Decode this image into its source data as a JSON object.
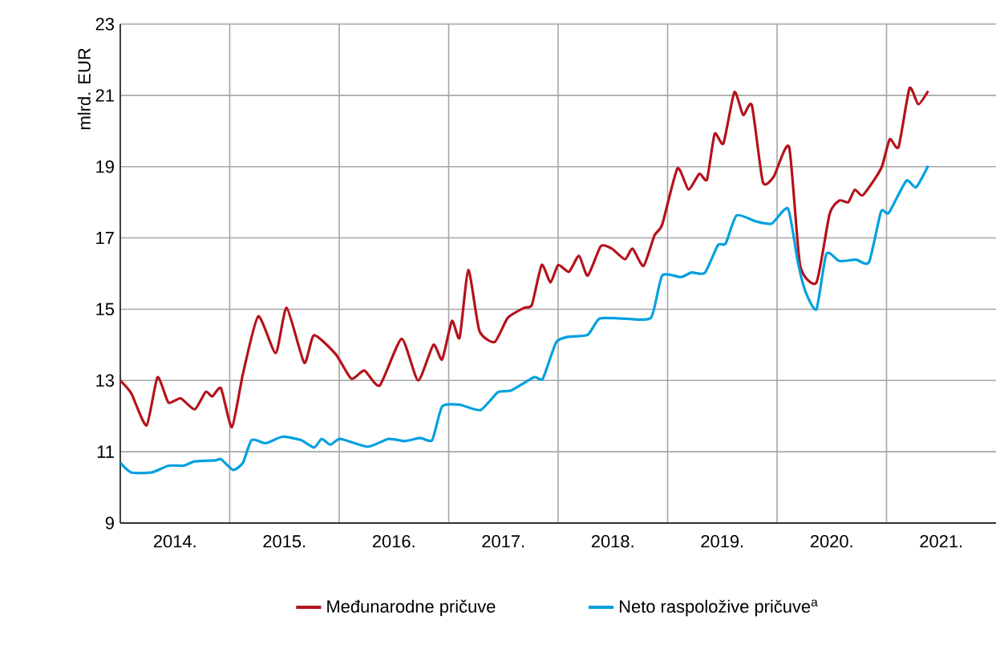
{
  "chart_data": {
    "type": "line",
    "ylabel": "mlrd. EUR",
    "xlim": [
      2014,
      2022
    ],
    "ylim": [
      9,
      23
    ],
    "yticks": [
      9,
      11,
      13,
      15,
      17,
      19,
      21,
      23
    ],
    "xticks": [
      {
        "value": 2014,
        "label": null
      },
      {
        "value": 2015,
        "label": null
      },
      {
        "value": 2016,
        "label": null
      },
      {
        "value": 2017,
        "label": null
      },
      {
        "value": 2018,
        "label": null
      },
      {
        "value": 2019,
        "label": null
      },
      {
        "value": 2020,
        "label": null
      },
      {
        "value": 2021,
        "label": null
      },
      {
        "value": 2014.5,
        "label": "2014."
      },
      {
        "value": 2015.5,
        "label": "2015."
      },
      {
        "value": 2016.5,
        "label": "2016."
      },
      {
        "value": 2017.5,
        "label": "2017."
      },
      {
        "value": 2018.5,
        "label": "2018."
      },
      {
        "value": 2019.5,
        "label": "2019."
      },
      {
        "value": 2020.5,
        "label": "2020."
      },
      {
        "value": 2021.5,
        "label": "2021."
      }
    ],
    "grid": true,
    "legend": "bottom",
    "line_style": "solid",
    "marker": "none",
    "series": [
      {
        "name": "Međunarodne pričuve",
        "color": "#b5121b",
        "x": [
          2014.0,
          2014.1,
          2014.24,
          2014.34,
          2014.44,
          2014.55,
          2014.68,
          2014.78,
          2014.84,
          2014.92,
          2015.02,
          2015.12,
          2015.26,
          2015.42,
          2015.52,
          2015.68,
          2015.77,
          2015.97,
          2016.11,
          2016.23,
          2016.37,
          2016.57,
          2016.72,
          2016.86,
          2016.94,
          2017.03,
          2017.1,
          2017.18,
          2017.28,
          2017.42,
          2017.54,
          2017.69,
          2017.76,
          2017.85,
          2017.93,
          2018.0,
          2018.1,
          2018.19,
          2018.27,
          2018.39,
          2018.49,
          2018.61,
          2018.68,
          2018.78,
          2018.88,
          2018.95,
          2019.09,
          2019.19,
          2019.29,
          2019.36,
          2019.43,
          2019.51,
          2019.61,
          2019.69,
          2019.77,
          2019.87,
          2019.97,
          2020.11,
          2020.21,
          2020.36,
          2020.48,
          2020.57,
          2020.65,
          2020.71,
          2020.78,
          2020.89,
          2020.96,
          2021.03,
          2021.11,
          2021.21,
          2021.29,
          2021.38
        ],
        "values": [
          13.0,
          12.64,
          11.74,
          13.09,
          12.38,
          12.5,
          12.19,
          12.68,
          12.55,
          12.78,
          11.69,
          13.18,
          14.8,
          13.77,
          15.04,
          13.5,
          14.27,
          13.73,
          13.05,
          13.28,
          12.86,
          14.17,
          13.0,
          14.0,
          13.59,
          14.67,
          14.2,
          16.1,
          14.4,
          14.08,
          14.76,
          15.04,
          15.12,
          16.24,
          15.75,
          16.24,
          16.05,
          16.5,
          15.94,
          16.77,
          16.7,
          16.4,
          16.7,
          16.21,
          17.07,
          17.37,
          18.95,
          18.36,
          18.8,
          18.64,
          19.92,
          19.65,
          21.09,
          20.45,
          20.72,
          18.57,
          18.72,
          19.55,
          16.24,
          15.75,
          17.67,
          18.05,
          18.0,
          18.35,
          18.19,
          18.64,
          19.02,
          19.77,
          19.55,
          21.2,
          20.75,
          21.12
        ]
      },
      {
        "name": "Neto raspoložive pričuve$^{a}$",
        "color": "#00a0e0",
        "x": [
          2014.0,
          2014.1,
          2014.29,
          2014.44,
          2014.58,
          2014.68,
          2014.87,
          2014.92,
          2015.03,
          2015.12,
          2015.2,
          2015.33,
          2015.48,
          2015.65,
          2015.77,
          2015.84,
          2015.92,
          2016.01,
          2016.26,
          2016.45,
          2016.6,
          2016.74,
          2016.85,
          2016.94,
          2017.1,
          2017.29,
          2017.45,
          2017.57,
          2017.78,
          2017.86,
          2017.98,
          2018.08,
          2018.27,
          2018.38,
          2018.63,
          2018.85,
          2018.95,
          2019.12,
          2019.22,
          2019.34,
          2019.46,
          2019.53,
          2019.63,
          2019.8,
          2019.95,
          2020.1,
          2020.19,
          2020.26,
          2020.36,
          2020.45,
          2020.57,
          2020.72,
          2020.84,
          2020.95,
          2021.02,
          2021.18,
          2021.27,
          2021.38
        ],
        "values": [
          10.69,
          10.42,
          10.42,
          10.61,
          10.61,
          10.73,
          10.76,
          10.79,
          10.49,
          10.69,
          11.33,
          11.24,
          11.42,
          11.33,
          11.12,
          11.36,
          11.2,
          11.36,
          11.14,
          11.36,
          11.3,
          11.39,
          11.33,
          12.27,
          12.32,
          12.17,
          12.67,
          12.72,
          13.09,
          13.05,
          14.06,
          14.22,
          14.28,
          14.74,
          14.73,
          14.77,
          15.94,
          15.9,
          16.03,
          16.02,
          16.8,
          16.84,
          17.63,
          17.47,
          17.4,
          17.82,
          16.32,
          15.49,
          15.0,
          16.55,
          16.35,
          16.39,
          16.32,
          17.74,
          17.7,
          18.6,
          18.42,
          19.02
        ]
      }
    ]
  }
}
